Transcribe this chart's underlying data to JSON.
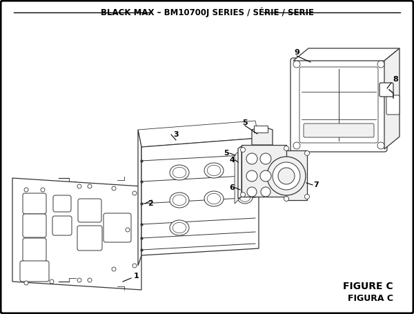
{
  "title": "BLACK MAX – BM10700J SERIES / SÉRIE / SERIE",
  "figure_label": "FIGURE C",
  "figura_label": "FIGURA C",
  "bg_color": "#ffffff",
  "text_color": "#000000",
  "line_color": "#333333",
  "title_fontsize": 8.5,
  "label_fontsize": 8
}
